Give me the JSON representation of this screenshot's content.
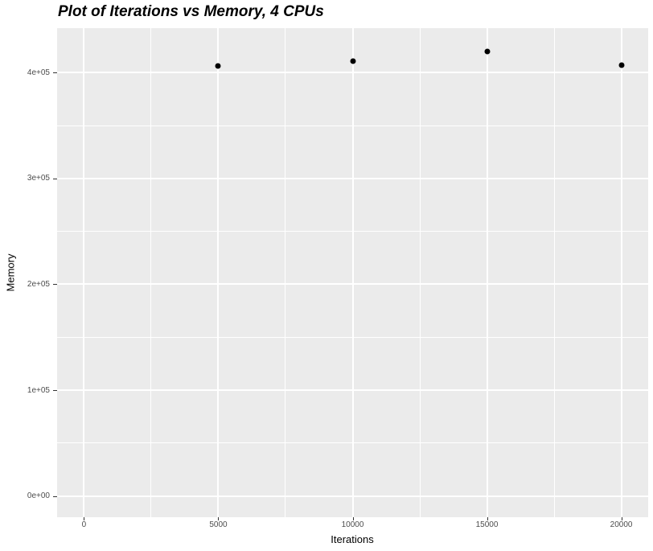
{
  "chart_data": {
    "type": "scatter",
    "title": "Plot of Iterations vs Memory, 4 CPUs",
    "xlabel": "Iterations",
    "ylabel": "Memory",
    "points": [
      {
        "x": 5000,
        "y": 406000
      },
      {
        "x": 10000,
        "y": 411000
      },
      {
        "x": 15000,
        "y": 420000
      },
      {
        "x": 20000,
        "y": 407000
      }
    ],
    "x_ticks": [
      {
        "value": 0,
        "label": "0"
      },
      {
        "value": 5000,
        "label": "5000"
      },
      {
        "value": 10000,
        "label": "10000"
      },
      {
        "value": 15000,
        "label": "15000"
      },
      {
        "value": 20000,
        "label": "20000"
      }
    ],
    "y_ticks": [
      {
        "value": 0,
        "label": "0e+00"
      },
      {
        "value": 100000,
        "label": "1e+05"
      },
      {
        "value": 200000,
        "label": "2e+05"
      },
      {
        "value": 300000,
        "label": "3e+05"
      },
      {
        "value": 400000,
        "label": "4e+05"
      }
    ],
    "x_minor_ticks": [
      2500,
      7500,
      12500,
      17500
    ],
    "y_minor_ticks": [
      50000,
      150000,
      250000,
      350000
    ],
    "xlim": [
      -1000,
      21000
    ],
    "ylim": [
      -20000,
      442000
    ],
    "grid": "major-and-minor",
    "legend": "none",
    "colors": {
      "panel_background": "#EBEBEB",
      "gridline": "#FFFFFF",
      "point": "#000000",
      "tick_label_text": "#4D4D4D",
      "tick_mark": "#333333",
      "title_text": "#000000",
      "axis_title_text": "#000000",
      "figure_background": "#FFFFFF"
    }
  }
}
